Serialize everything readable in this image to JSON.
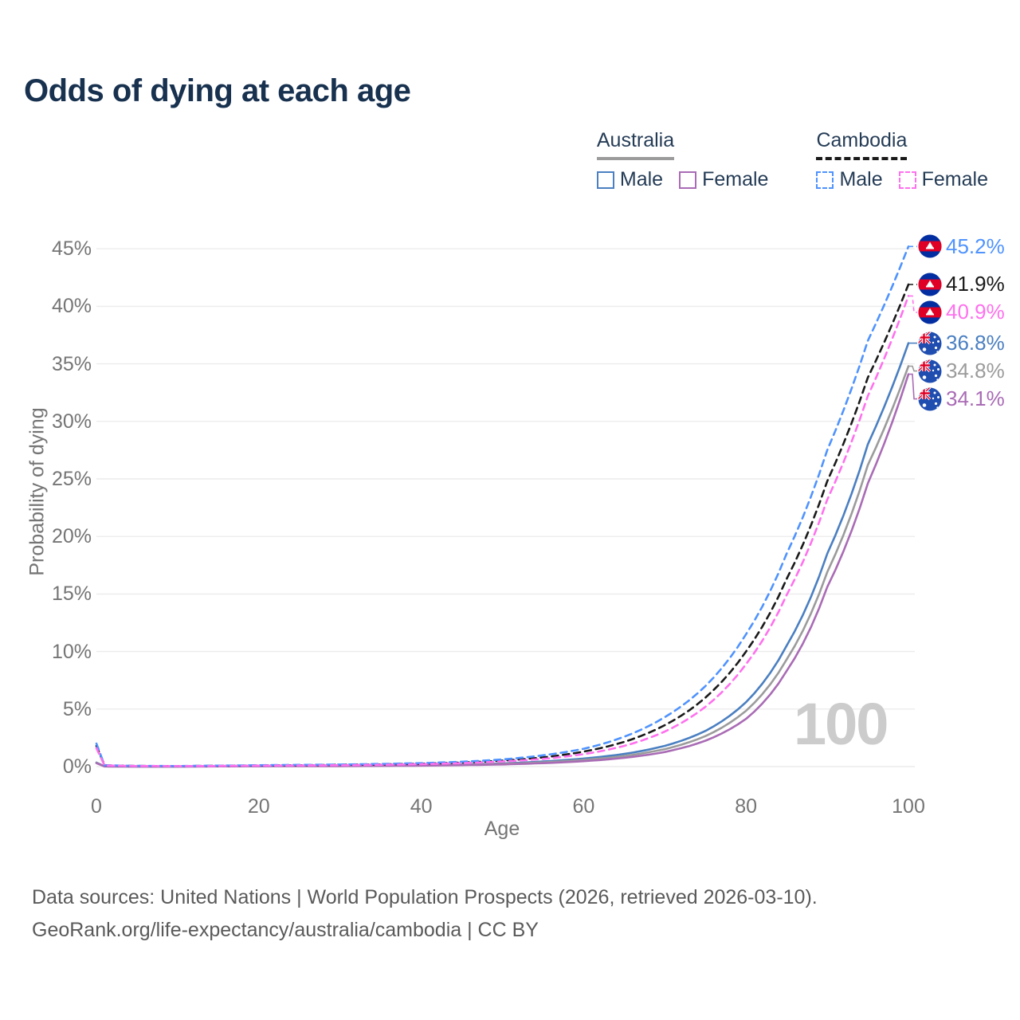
{
  "title": "Odds of dying at each age",
  "legend": {
    "groups": [
      {
        "label": "Australia",
        "line_style": "solid",
        "line_color": "#9b9b9b",
        "items": [
          {
            "label": "Male",
            "color": "#4a7fc1",
            "style": "solid"
          },
          {
            "label": "Female",
            "color": "#a96bb5",
            "style": "solid"
          }
        ]
      },
      {
        "label": "Cambodia",
        "line_style": "dashed",
        "line_color": "#1a1a1a",
        "items": [
          {
            "label": "Male",
            "color": "#4f93ff",
            "style": "dashed"
          },
          {
            "label": "Female",
            "color": "#ff70ee",
            "style": "dashed"
          }
        ]
      }
    ]
  },
  "axes": {
    "y_title": "Probability of dying",
    "x_title": "Age",
    "y_ticks": [
      "0%",
      "5%",
      "10%",
      "15%",
      "20%",
      "25%",
      "30%",
      "35%",
      "40%",
      "45%"
    ],
    "y_tick_values": [
      0,
      5,
      10,
      15,
      20,
      25,
      30,
      35,
      40,
      45
    ],
    "x_ticks": [
      "0",
      "20",
      "40",
      "60",
      "80",
      "100"
    ],
    "x_tick_values": [
      0,
      20,
      40,
      60,
      80,
      100
    ]
  },
  "watermark": "100",
  "footer": {
    "line1": "Data sources: United Nations | World Population Prospects (2026, retrieved 2026-03-10).",
    "line2": "GeoRank.org/life-expectancy/australia/cambodia | CC BY"
  },
  "chart_data": {
    "type": "line",
    "title": "Odds of dying at each age",
    "xlabel": "Age",
    "ylabel": "Probability of dying",
    "x_range": [
      0,
      100
    ],
    "y_range_percent": [
      0,
      45
    ],
    "grid": "horizontal",
    "legend_position": "top-right",
    "ages": [
      0,
      1,
      5,
      10,
      15,
      20,
      25,
      30,
      35,
      40,
      45,
      50,
      55,
      60,
      65,
      70,
      75,
      80,
      85,
      90,
      95,
      100
    ],
    "series": [
      {
        "name": "Australia Male",
        "country": "Australia",
        "sex": "Male",
        "flag": "australia",
        "color": "#4a7fc1",
        "dash": false,
        "end_label": "36.8%",
        "end_value": 36.8,
        "values": [
          0.35,
          0.02,
          0.01,
          0.01,
          0.03,
          0.06,
          0.07,
          0.08,
          0.1,
          0.13,
          0.19,
          0.28,
          0.44,
          0.7,
          1.1,
          1.8,
          3.1,
          5.6,
          10.5,
          18.5,
          28.0,
          36.8
        ]
      },
      {
        "name": "Australia Both",
        "country": "Australia",
        "sex": "Both",
        "flag": "australia",
        "color": "#9b9b9b",
        "dash": false,
        "end_label": "34.8%",
        "end_value": 34.8,
        "values": [
          0.33,
          0.018,
          0.009,
          0.009,
          0.025,
          0.045,
          0.055,
          0.065,
          0.085,
          0.11,
          0.16,
          0.24,
          0.37,
          0.58,
          0.92,
          1.52,
          2.65,
          4.85,
          9.3,
          16.9,
          26.2,
          34.8
        ]
      },
      {
        "name": "Australia Female",
        "country": "Australia",
        "sex": "Female",
        "flag": "australia",
        "color": "#a96bb5",
        "dash": false,
        "end_label": "34.1%",
        "end_value": 34.1,
        "values": [
          0.3,
          0.016,
          0.008,
          0.008,
          0.02,
          0.03,
          0.035,
          0.045,
          0.06,
          0.085,
          0.125,
          0.19,
          0.3,
          0.47,
          0.76,
          1.27,
          2.25,
          4.15,
          8.3,
          15.6,
          24.6,
          34.1
        ]
      },
      {
        "name": "Cambodia Both",
        "country": "Cambodia",
        "sex": "Both",
        "flag": "cambodia",
        "color": "#1a1a1a",
        "dash": true,
        "end_label": "41.9%",
        "end_value": 41.9,
        "values": [
          1.8,
          0.11,
          0.055,
          0.045,
          0.065,
          0.095,
          0.12,
          0.15,
          0.19,
          0.25,
          0.35,
          0.52,
          0.8,
          1.3,
          2.15,
          3.6,
          6.0,
          10.0,
          16.3,
          24.8,
          33.8,
          41.9
        ]
      },
      {
        "name": "Cambodia Male",
        "country": "Cambodia",
        "sex": "Male",
        "flag": "cambodia",
        "color": "#4f93ff",
        "dash": true,
        "end_label": "45.2%",
        "end_value": 45.2,
        "values": [
          2.0,
          0.12,
          0.06,
          0.05,
          0.08,
          0.12,
          0.15,
          0.18,
          0.23,
          0.3,
          0.42,
          0.62,
          0.98,
          1.55,
          2.6,
          4.3,
          7.0,
          11.5,
          18.5,
          27.5,
          37.0,
          45.2
        ]
      },
      {
        "name": "Cambodia Female",
        "country": "Cambodia",
        "sex": "Female",
        "flag": "cambodia",
        "color": "#ff70ee",
        "dash": true,
        "end_label": "40.9%",
        "end_value": 40.9,
        "values": [
          1.6,
          0.1,
          0.05,
          0.04,
          0.055,
          0.08,
          0.1,
          0.12,
          0.16,
          0.21,
          0.3,
          0.44,
          0.67,
          1.08,
          1.8,
          3.05,
          5.2,
          8.9,
          14.9,
          23.2,
          32.2,
          40.9
        ]
      }
    ]
  }
}
